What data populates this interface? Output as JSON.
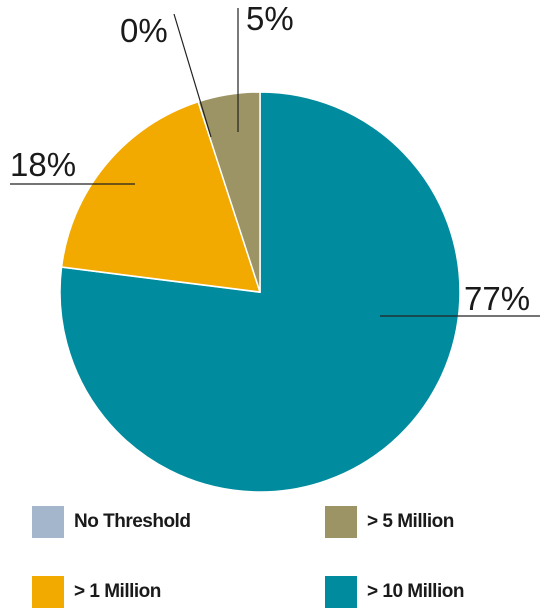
{
  "chart_data": {
    "type": "pie",
    "slices": [
      {
        "name": "> 10 Million",
        "value": 77,
        "label": "77%",
        "color": "#008C9E"
      },
      {
        "name": "No Threshold",
        "value": 0,
        "label": "0%",
        "color": "#A3B6CC"
      },
      {
        "name": "> 1 Million",
        "value": 18,
        "label": "18%",
        "color": "#F2A900"
      },
      {
        "name": "> 5 Million",
        "value": 5,
        "label": "5%",
        "color": "#9C9464"
      }
    ],
    "legend": [
      {
        "label": "No Threshold",
        "color": "#A3B6CC"
      },
      {
        "label": "> 5 Million",
        "color": "#9C9464"
      },
      {
        "label": "> 1 Million",
        "color": "#F2A900"
      },
      {
        "label": "> 10 Million",
        "color": "#008C9E"
      }
    ],
    "legend_position": "bottom",
    "title": ""
  }
}
